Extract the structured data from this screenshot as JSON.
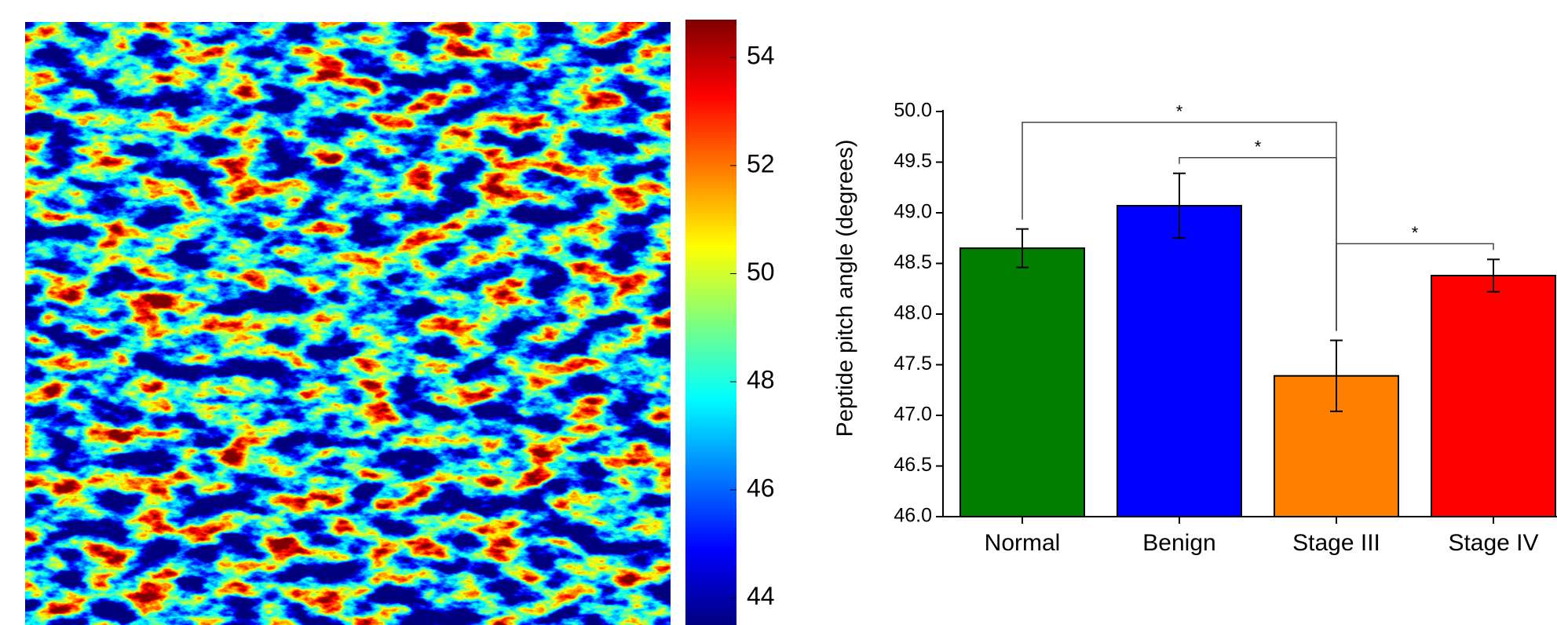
{
  "chart_data": [
    {
      "type": "heatmap",
      "colorbar": {
        "colormap": "jet",
        "lim": [
          43.5,
          54.7
        ],
        "ticks": [
          44,
          46,
          48,
          50,
          52,
          54
        ]
      }
    },
    {
      "type": "bar",
      "ylabel": "Peptide pitch angle (degrees)",
      "categories": [
        "Normal",
        "Benign",
        "Stage III",
        "Stage IV"
      ],
      "values": [
        48.65,
        49.07,
        47.39,
        48.38
      ],
      "errors": [
        0.19,
        0.32,
        0.35,
        0.16
      ],
      "colors": [
        "#007f00",
        "#0000ff",
        "#ff8000",
        "#ff0000"
      ],
      "ylim": [
        46,
        50
      ],
      "yticks": [
        {
          "value": 46,
          "label": "46.0"
        },
        {
          "value": 46.5,
          "label": "46.5"
        },
        {
          "value": 47,
          "label": "47.0"
        },
        {
          "value": 47.5,
          "label": "47.5"
        },
        {
          "value": 48,
          "label": "48.0"
        },
        {
          "value": 48.5,
          "label": "48.5"
        },
        {
          "value": 49,
          "label": "49.0"
        },
        {
          "value": 49.5,
          "label": "49.5"
        },
        {
          "value": 50,
          "label": "50.0"
        }
      ],
      "annotations": [
        {
          "text": "*",
          "from": 0,
          "to": 2
        },
        {
          "text": "*",
          "from": 1,
          "to": 2
        },
        {
          "text": "*",
          "from": 2,
          "to": 3
        }
      ]
    }
  ]
}
